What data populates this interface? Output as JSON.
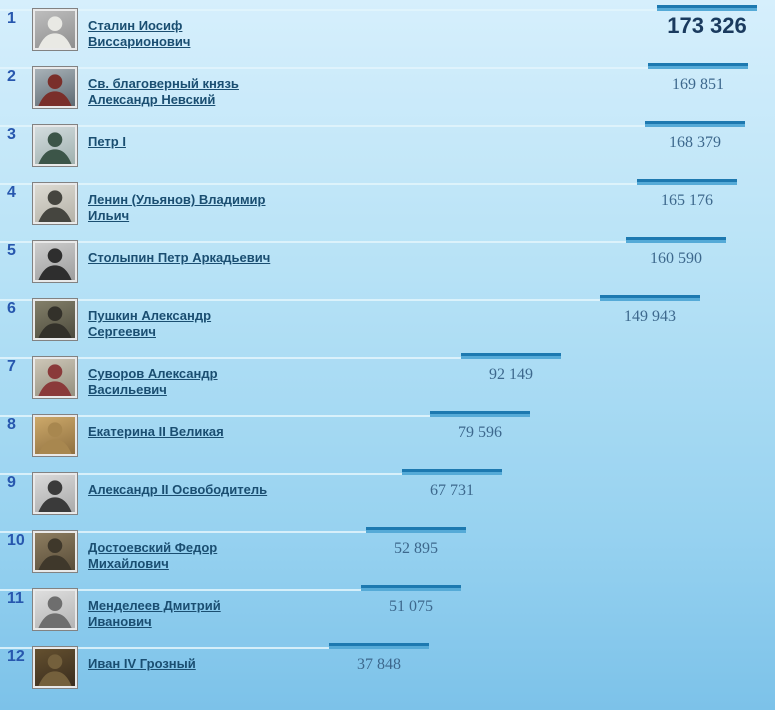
{
  "colors": {
    "bg_top": "#d6effc",
    "bg_mid": "#b7e2f6",
    "bg_low": "#97d2f0",
    "bg_bottom": "#7cc2e9",
    "bar_dark": "#1d79b0",
    "bar_light": "#55aad7",
    "track": "#e2f4fc",
    "rank": "#2757ae",
    "link": "#1a4e71",
    "value": "#3d688d",
    "value_leader": "#1a3a5e",
    "thumb_border": "#828282",
    "thumb_mat": "#e9e9e9"
  },
  "list": {
    "rows": [
      {
        "rank": "1",
        "name": "Сталин Иосиф Виссарионович",
        "votes": 173326,
        "votes_label": "173 326",
        "thumb": {
          "icon": "person-portrait",
          "bg1": "#bdbdbd",
          "bg2": "#8f8f8f",
          "fg": "#e9e9e4"
        }
      },
      {
        "rank": "2",
        "name": "Св. благоверный князь Александр Невский",
        "votes": 169851,
        "votes_label": "169 851",
        "thumb": {
          "icon": "person-portrait",
          "bg1": "#a8b2b8",
          "bg2": "#5f6a72",
          "fg": "#7a2f2a"
        }
      },
      {
        "rank": "3",
        "name": "Петр I",
        "votes": 168379,
        "votes_label": "168 379",
        "thumb": {
          "icon": "person-portrait",
          "bg1": "#d3dcde",
          "bg2": "#9fb0ae",
          "fg": "#3c5548"
        }
      },
      {
        "rank": "4",
        "name": "Ленин (Ульянов) Владимир Ильич",
        "votes": 165176,
        "votes_label": "165 176",
        "thumb": {
          "icon": "person-portrait",
          "bg1": "#dcdad2",
          "bg2": "#b5b2a8",
          "fg": "#45453f"
        }
      },
      {
        "rank": "5",
        "name": "Столыпин Петр Аркадьевич",
        "votes": 160590,
        "votes_label": "160 590",
        "thumb": {
          "icon": "person-portrait",
          "bg1": "#cccccc",
          "bg2": "#9e9e9e",
          "fg": "#2e2e2e"
        }
      },
      {
        "rank": "6",
        "name": "Пушкин Александр Сергеевич",
        "votes": 149943,
        "votes_label": "149 943",
        "thumb": {
          "icon": "person-portrait",
          "bg1": "#837f69",
          "bg2": "#4e4c3e",
          "fg": "#33312a"
        }
      },
      {
        "rank": "7",
        "name": "Суворов Александр Васильевич",
        "votes": 92149,
        "votes_label": "92 149",
        "thumb": {
          "icon": "person-portrait",
          "bg1": "#cdc6b7",
          "bg2": "#94907f",
          "fg": "#8a3a3a"
        }
      },
      {
        "rank": "8",
        "name": "Екатерина II Великая",
        "votes": 79596,
        "votes_label": "79 596",
        "thumb": {
          "icon": "person-portrait",
          "bg1": "#cda96a",
          "bg2": "#8f7040",
          "fg": "#a8874f"
        }
      },
      {
        "rank": "9",
        "name": "Александр II Освободитель",
        "votes": 67731,
        "votes_label": "67 731",
        "thumb": {
          "icon": "person-portrait",
          "bg1": "#d9d9d9",
          "bg2": "#aaaaaa",
          "fg": "#3a3a3a"
        }
      },
      {
        "rank": "10",
        "name": "Достоевский Федор Михайлович",
        "votes": 52895,
        "votes_label": "52 895",
        "thumb": {
          "icon": "person-portrait",
          "bg1": "#8d7d60",
          "bg2": "#5a4e3a",
          "fg": "#3f382b"
        }
      },
      {
        "rank": "11",
        "name": "Менделеев Дмитрий Иванович",
        "votes": 51075,
        "votes_label": "51 075",
        "thumb": {
          "icon": "person-portrait",
          "bg1": "#dedede",
          "bg2": "#b4b4b4",
          "fg": "#6e6e6e"
        }
      },
      {
        "rank": "12",
        "name": "Иван IV Грозный",
        "votes": 37848,
        "votes_label": "37 848",
        "thumb": {
          "icon": "person-portrait",
          "bg1": "#64502f",
          "bg2": "#3a2d1e",
          "fg": "#74603c"
        }
      }
    ]
  },
  "chart_data": {
    "type": "bar",
    "orientation": "horizontal",
    "title": "",
    "xlabel": "",
    "ylabel": "",
    "legend": false,
    "grid": false,
    "categories": [
      "Сталин Иосиф Виссарионович",
      "Св. благоверный князь Александр Невский",
      "Петр I",
      "Ленин (Ульянов) Владимир Ильич",
      "Столыпин Петр Аркадьевич",
      "Пушкин Александр Сергеевич",
      "Суворов Александр Васильевич",
      "Екатерина II Великая",
      "Александр II Освободитель",
      "Достоевский Федор Михайлович",
      "Менделеев Дмитрий Иванович",
      "Иван IV Грозный"
    ],
    "ranks": [
      1,
      2,
      3,
      4,
      5,
      6,
      7,
      8,
      9,
      10,
      11,
      12
    ],
    "values": [
      173326,
      169851,
      168379,
      165176,
      160590,
      149943,
      92149,
      79596,
      67731,
      52895,
      51075,
      37848
    ],
    "value_labels": [
      "173 326",
      "169 851",
      "168 379",
      "165 176",
      "160 590",
      "149 943",
      "92 149",
      "79 596",
      "67 731",
      "52 895",
      "51 075",
      "37 848"
    ],
    "value_range": [
      0,
      173326
    ],
    "notes": "ranked voting list; each row shows a bar segment whose end position encodes the vote count, with the count printed beneath the bar"
  }
}
